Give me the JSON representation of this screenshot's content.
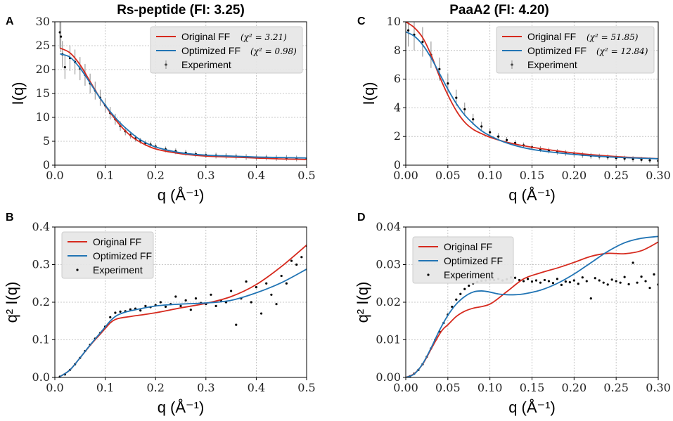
{
  "chart_data": [
    {
      "panel": "A",
      "type": "scatter",
      "title": "Rs-peptide (FI: 3.25)",
      "xlabel": "q (Å⁻¹)",
      "ylabel": "I(q)",
      "xlim": [
        0,
        0.5
      ],
      "ylim": [
        0,
        30
      ],
      "xticks": [
        "0.0",
        "0.1",
        "0.2",
        "0.3",
        "0.4",
        "0.5"
      ],
      "yticks": [
        "0",
        "5",
        "10",
        "15",
        "20",
        "25",
        "30"
      ],
      "xtick_values": [
        0,
        0.1,
        0.2,
        0.3,
        0.4,
        0.5
      ],
      "ytick_values": [
        0,
        5,
        10,
        15,
        20,
        25,
        30
      ],
      "errorbars": true,
      "legend": {
        "position": "top-right",
        "entries": [
          {
            "label": "Original FF",
            "chi": "(χ² = 3.21)",
            "color": "#d62a1e"
          },
          {
            "label": "Optimized FF",
            "chi": "(χ² = 0.98)",
            "color": "#2174b4"
          },
          {
            "label": "Experiment",
            "chi": "",
            "color": "#000000"
          }
        ]
      },
      "series": [
        {
          "name": "Original FF",
          "color": "#d62a1e",
          "x": [
            0.01,
            0.03,
            0.05,
            0.07,
            0.09,
            0.11,
            0.13,
            0.15,
            0.17,
            0.2,
            0.25,
            0.3,
            0.35,
            0.4,
            0.45,
            0.5
          ],
          "y": [
            24.5,
            23.5,
            21,
            17.5,
            14,
            11,
            8.3,
            6.2,
            4.8,
            3.4,
            2.4,
            1.9,
            1.7,
            1.5,
            1.3,
            1.2
          ]
        },
        {
          "name": "Optimized FF",
          "color": "#2174b4",
          "x": [
            0.01,
            0.03,
            0.05,
            0.07,
            0.09,
            0.11,
            0.13,
            0.15,
            0.17,
            0.2,
            0.25,
            0.3,
            0.35,
            0.4,
            0.45,
            0.5
          ],
          "y": [
            23.3,
            22.6,
            20.3,
            17.2,
            14,
            11.2,
            8.8,
            6.9,
            5.3,
            3.8,
            2.6,
            2.1,
            1.9,
            1.7,
            1.6,
            1.5
          ]
        },
        {
          "name": "Experiment",
          "color": "#000000",
          "x": [
            0.01,
            0.012,
            0.015,
            0.02,
            0.03,
            0.04,
            0.05,
            0.06,
            0.07,
            0.08,
            0.09,
            0.1,
            0.11,
            0.12,
            0.13,
            0.14,
            0.15,
            0.16,
            0.17,
            0.18,
            0.19,
            0.2,
            0.22,
            0.24,
            0.26,
            0.28,
            0.3,
            0.32,
            0.34,
            0.36,
            0.38,
            0.4,
            0.42,
            0.44,
            0.46,
            0.48,
            0.5
          ],
          "y": [
            27.8,
            26.9,
            23.2,
            20.5,
            22.4,
            21.6,
            20.2,
            18.9,
            17.1,
            15.6,
            14.1,
            12.5,
            10.9,
            9.6,
            8.2,
            7.1,
            6.3,
            5.6,
            5.1,
            4.6,
            4.3,
            3.9,
            3.3,
            2.9,
            2.6,
            2.3,
            2.1,
            2.0,
            1.9,
            1.8,
            1.7,
            1.6,
            1.6,
            1.5,
            1.5,
            1.4,
            1.4
          ]
        }
      ]
    },
    {
      "panel": "B",
      "type": "scatter",
      "title": "",
      "xlabel": "q (Å⁻¹)",
      "ylabel": "q² I(q)",
      "xlim": [
        0,
        0.5
      ],
      "ylim": [
        0,
        0.4
      ],
      "xticks": [
        "0.0",
        "0.1",
        "0.2",
        "0.3",
        "0.4",
        "0.5"
      ],
      "yticks": [
        "0.0",
        "0.1",
        "0.2",
        "0.3",
        "0.4"
      ],
      "xtick_values": [
        0,
        0.1,
        0.2,
        0.3,
        0.4,
        0.5
      ],
      "ytick_values": [
        0,
        0.1,
        0.2,
        0.3,
        0.4
      ],
      "errorbars": false,
      "legend": {
        "position": "top-left",
        "entries": [
          {
            "label": "Original FF",
            "chi": "",
            "color": "#d62a1e"
          },
          {
            "label": "Optimized FF",
            "chi": "",
            "color": "#2174b4"
          },
          {
            "label": "Experiment",
            "chi": "",
            "color": "#000000"
          }
        ]
      },
      "series": [
        {
          "name": "Original FF",
          "color": "#d62a1e",
          "x": [
            0.01,
            0.03,
            0.05,
            0.07,
            0.09,
            0.1,
            0.11,
            0.12,
            0.13,
            0.15,
            0.2,
            0.25,
            0.3,
            0.35,
            0.4,
            0.45,
            0.5
          ],
          "y": [
            0.002,
            0.02,
            0.052,
            0.085,
            0.115,
            0.13,
            0.145,
            0.154,
            0.158,
            0.162,
            0.172,
            0.185,
            0.197,
            0.215,
            0.247,
            0.295,
            0.352
          ]
        },
        {
          "name": "Optimized FF",
          "color": "#2174b4",
          "x": [
            0.01,
            0.03,
            0.05,
            0.07,
            0.09,
            0.1,
            0.11,
            0.12,
            0.13,
            0.15,
            0.2,
            0.25,
            0.3,
            0.35,
            0.4,
            0.45,
            0.5
          ],
          "y": [
            0.002,
            0.02,
            0.052,
            0.086,
            0.118,
            0.134,
            0.15,
            0.162,
            0.169,
            0.177,
            0.19,
            0.195,
            0.198,
            0.205,
            0.225,
            0.252,
            0.288
          ]
        },
        {
          "name": "Experiment",
          "color": "#000000",
          "x": [
            0.01,
            0.02,
            0.03,
            0.04,
            0.05,
            0.06,
            0.07,
            0.08,
            0.09,
            0.1,
            0.11,
            0.12,
            0.13,
            0.14,
            0.15,
            0.16,
            0.17,
            0.18,
            0.19,
            0.2,
            0.21,
            0.22,
            0.23,
            0.24,
            0.25,
            0.26,
            0.27,
            0.28,
            0.29,
            0.3,
            0.31,
            0.32,
            0.33,
            0.34,
            0.35,
            0.36,
            0.37,
            0.38,
            0.39,
            0.4,
            0.41,
            0.42,
            0.43,
            0.44,
            0.45,
            0.46,
            0.47,
            0.48,
            0.49,
            0.5
          ],
          "y": [
            0.002,
            0.008,
            0.02,
            0.035,
            0.052,
            0.07,
            0.087,
            0.103,
            0.118,
            0.135,
            0.16,
            0.172,
            0.175,
            0.176,
            0.181,
            0.183,
            0.178,
            0.19,
            0.187,
            0.192,
            0.2,
            0.188,
            0.195,
            0.215,
            0.19,
            0.205,
            0.18,
            0.21,
            0.198,
            0.195,
            0.22,
            0.19,
            0.205,
            0.2,
            0.23,
            0.14,
            0.21,
            0.255,
            0.2,
            0.24,
            0.17,
            0.25,
            0.22,
            0.195,
            0.27,
            0.25,
            0.31,
            0.3,
            0.32,
            0.35
          ]
        }
      ]
    },
    {
      "panel": "C",
      "type": "scatter",
      "title": "PaaA2 (FI: 4.20)",
      "xlabel": "q (Å⁻¹)",
      "ylabel": "I(q)",
      "xlim": [
        0,
        0.3
      ],
      "ylim": [
        0,
        10
      ],
      "xticks": [
        "0.00",
        "0.05",
        "0.10",
        "0.15",
        "0.20",
        "0.25",
        "0.30"
      ],
      "yticks": [
        "0",
        "2",
        "4",
        "6",
        "8",
        "10"
      ],
      "xtick_values": [
        0,
        0.05,
        0.1,
        0.15,
        0.2,
        0.25,
        0.3
      ],
      "ytick_values": [
        0,
        2,
        4,
        6,
        8,
        10
      ],
      "errorbars": true,
      "legend": {
        "position": "top-right",
        "entries": [
          {
            "label": "Original FF",
            "chi": "(χ² = 51.85)",
            "color": "#d62a1e"
          },
          {
            "label": "Optimized FF",
            "chi": "(χ² = 12.84)",
            "color": "#2174b4"
          },
          {
            "label": "Experiment",
            "chi": "",
            "color": "#000000"
          }
        ]
      },
      "series": [
        {
          "name": "Original FF",
          "color": "#d62a1e",
          "x": [
            0,
            0.01,
            0.02,
            0.03,
            0.04,
            0.05,
            0.06,
            0.07,
            0.08,
            0.09,
            0.1,
            0.12,
            0.15,
            0.2,
            0.25,
            0.3
          ],
          "y": [
            10,
            9.6,
            8.9,
            7.7,
            6.2,
            4.9,
            3.8,
            3.0,
            2.5,
            2.2,
            1.95,
            1.6,
            1.25,
            0.85,
            0.6,
            0.45
          ]
        },
        {
          "name": "Optimized FF",
          "color": "#2174b4",
          "x": [
            0,
            0.01,
            0.02,
            0.03,
            0.04,
            0.05,
            0.06,
            0.07,
            0.08,
            0.09,
            0.1,
            0.12,
            0.15,
            0.2,
            0.25,
            0.3
          ],
          "y": [
            9.3,
            9.0,
            8.4,
            7.5,
            6.4,
            5.3,
            4.3,
            3.5,
            2.9,
            2.4,
            2.05,
            1.55,
            1.1,
            0.75,
            0.55,
            0.45
          ]
        },
        {
          "name": "Experiment",
          "color": "#000000",
          "x": [
            0.003,
            0.01,
            0.02,
            0.03,
            0.04,
            0.05,
            0.06,
            0.07,
            0.08,
            0.09,
            0.1,
            0.11,
            0.12,
            0.13,
            0.14,
            0.15,
            0.16,
            0.17,
            0.18,
            0.19,
            0.2,
            0.21,
            0.22,
            0.23,
            0.24,
            0.25,
            0.26,
            0.27,
            0.28,
            0.29,
            0.3
          ],
          "y": [
            9.4,
            9.1,
            8.6,
            7.7,
            6.7,
            5.7,
            4.7,
            3.9,
            3.2,
            2.7,
            2.3,
            2.0,
            1.75,
            1.55,
            1.38,
            1.25,
            1.12,
            1.02,
            0.93,
            0.85,
            0.78,
            0.71,
            0.65,
            0.6,
            0.55,
            0.5,
            0.46,
            0.42,
            0.38,
            0.34,
            0.3
          ]
        }
      ]
    },
    {
      "panel": "D",
      "type": "scatter",
      "title": "",
      "xlabel": "q (Å⁻¹)",
      "ylabel": "q² I(q)",
      "xlim": [
        0,
        0.3
      ],
      "ylim": [
        0,
        0.04
      ],
      "xticks": [
        "0.00",
        "0.05",
        "0.10",
        "0.15",
        "0.20",
        "0.25",
        "0.30"
      ],
      "yticks": [
        "0.00",
        "0.01",
        "0.02",
        "0.03",
        "0.04"
      ],
      "xtick_values": [
        0,
        0.05,
        0.1,
        0.15,
        0.2,
        0.25,
        0.3
      ],
      "ytick_values": [
        0,
        0.01,
        0.02,
        0.03,
        0.04
      ],
      "errorbars": false,
      "legend": {
        "position": "top-left",
        "entries": [
          {
            "label": "Original FF",
            "chi": "",
            "color": "#d62a1e"
          },
          {
            "label": "Optimized FF",
            "chi": "",
            "color": "#2174b4"
          },
          {
            "label": "Experiment",
            "chi": "",
            "color": "#000000"
          }
        ]
      },
      "series": [
        {
          "name": "Original FF",
          "color": "#d62a1e",
          "x": [
            0,
            0.01,
            0.02,
            0.03,
            0.04,
            0.045,
            0.05,
            0.06,
            0.07,
            0.08,
            0.1,
            0.12,
            0.14,
            0.16,
            0.18,
            0.2,
            0.22,
            0.24,
            0.26,
            0.28,
            0.3
          ],
          "y": [
            0,
            0.001,
            0.0035,
            0.0075,
            0.0115,
            0.013,
            0.014,
            0.0162,
            0.0176,
            0.0184,
            0.0195,
            0.0228,
            0.0262,
            0.0278,
            0.0291,
            0.0306,
            0.0322,
            0.033,
            0.0329,
            0.0337,
            0.036
          ]
        },
        {
          "name": "Optimized FF",
          "color": "#2174b4",
          "x": [
            0,
            0.01,
            0.02,
            0.03,
            0.04,
            0.05,
            0.06,
            0.07,
            0.08,
            0.09,
            0.1,
            0.11,
            0.12,
            0.13,
            0.14,
            0.16,
            0.18,
            0.2,
            0.22,
            0.24,
            0.26,
            0.28,
            0.3
          ],
          "y": [
            0,
            0.0009,
            0.0036,
            0.0078,
            0.0125,
            0.0165,
            0.0195,
            0.0215,
            0.0227,
            0.023,
            0.0227,
            0.0222,
            0.022,
            0.022,
            0.0222,
            0.0232,
            0.025,
            0.0275,
            0.0305,
            0.0335,
            0.0358,
            0.037,
            0.0375
          ]
        },
        {
          "name": "Experiment",
          "color": "#000000",
          "x": [
            0.005,
            0.01,
            0.015,
            0.02,
            0.025,
            0.03,
            0.035,
            0.04,
            0.045,
            0.05,
            0.055,
            0.06,
            0.065,
            0.07,
            0.075,
            0.08,
            0.085,
            0.09,
            0.095,
            0.1,
            0.105,
            0.11,
            0.115,
            0.12,
            0.125,
            0.13,
            0.135,
            0.14,
            0.145,
            0.15,
            0.155,
            0.16,
            0.165,
            0.17,
            0.175,
            0.18,
            0.185,
            0.19,
            0.195,
            0.2,
            0.205,
            0.21,
            0.215,
            0.22,
            0.225,
            0.23,
            0.235,
            0.24,
            0.245,
            0.25,
            0.255,
            0.26,
            0.265,
            0.27,
            0.275,
            0.28,
            0.285,
            0.29,
            0.295,
            0.3
          ],
          "y": [
            0.0003,
            0.001,
            0.002,
            0.0035,
            0.0055,
            0.0077,
            0.01,
            0.0122,
            0.0145,
            0.0167,
            0.0188,
            0.0207,
            0.0222,
            0.0235,
            0.0244,
            0.025,
            0.0254,
            0.0257,
            0.0258,
            0.026,
            0.0259,
            0.0262,
            0.0258,
            0.0261,
            0.0266,
            0.0265,
            0.0259,
            0.0256,
            0.0262,
            0.0255,
            0.0258,
            0.0252,
            0.0259,
            0.0256,
            0.0251,
            0.0262,
            0.0246,
            0.0255,
            0.0253,
            0.0258,
            0.0249,
            0.0266,
            0.0256,
            0.021,
            0.0264,
            0.0258,
            0.0252,
            0.0247,
            0.026,
            0.0256,
            0.0252,
            0.0267,
            0.0248,
            0.0305,
            0.0252,
            0.0268,
            0.0256,
            0.0238,
            0.0274,
            0.0247
          ]
        }
      ]
    }
  ]
}
